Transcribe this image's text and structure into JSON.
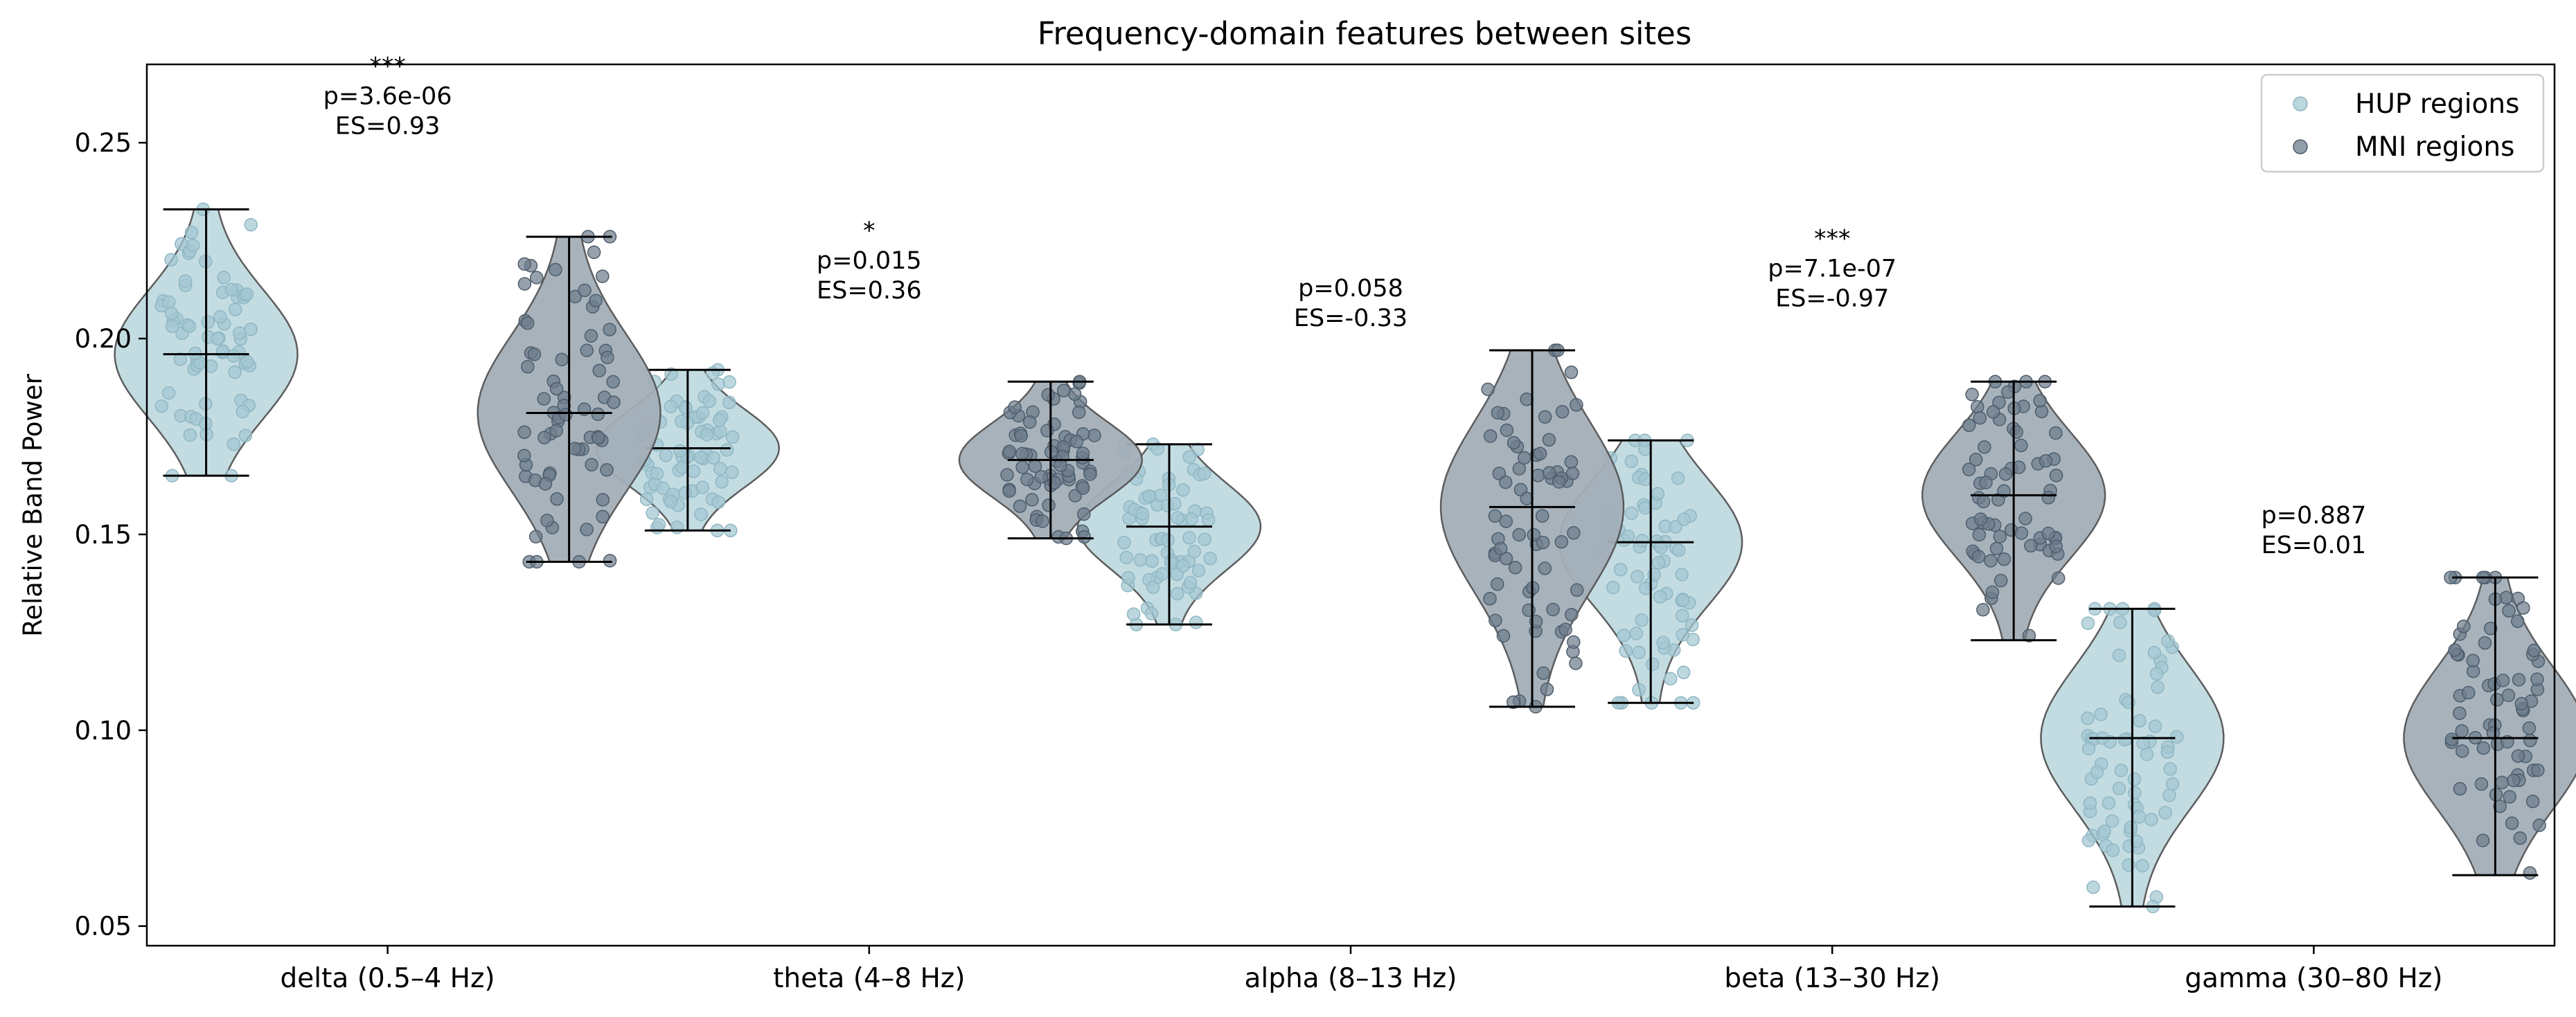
{
  "chart_data": {
    "type": "violin",
    "title": "Frequency-domain features between sites",
    "ylabel": "Relative Band Power",
    "xlabel": "",
    "ylim": [
      0.045,
      0.27
    ],
    "yticks": [
      0.05,
      0.1,
      0.15,
      0.2,
      0.25
    ],
    "ytick_labels": [
      "0.05",
      "0.10",
      "0.15",
      "0.20",
      "0.25"
    ],
    "legend": {
      "placement": "top-right",
      "entries": [
        {
          "label": "HUP regions",
          "color": "#a3c8d3"
        },
        {
          "label": "MNI regions",
          "color": "#6e7d8c"
        }
      ]
    },
    "grid": false,
    "categories": [
      "delta (0.5–4 Hz)",
      "theta (4–8 Hz)",
      "alpha (8–13 Hz)",
      "beta (13–30 Hz)",
      "gamma (30–80 Hz)"
    ],
    "series": [
      {
        "name": "HUP regions",
        "color": "#a3c8d3",
        "groups": [
          {
            "min": 0.165,
            "max": 0.233,
            "median": 0.196
          },
          {
            "min": 0.151,
            "max": 0.192,
            "median": 0.172
          },
          {
            "min": 0.127,
            "max": 0.173,
            "median": 0.152
          },
          {
            "min": 0.107,
            "max": 0.174,
            "median": 0.148
          },
          {
            "min": 0.055,
            "max": 0.131,
            "median": 0.098
          }
        ]
      },
      {
        "name": "MNI regions",
        "color": "#6e7d8c",
        "groups": [
          {
            "min": 0.143,
            "max": 0.226,
            "median": 0.181
          },
          {
            "min": 0.149,
            "max": 0.189,
            "median": 0.169
          },
          {
            "min": 0.106,
            "max": 0.197,
            "median": 0.157
          },
          {
            "min": 0.123,
            "max": 0.189,
            "median": 0.16
          },
          {
            "min": 0.063,
            "max": 0.139,
            "median": 0.098
          }
        ]
      }
    ],
    "annotations": [
      {
        "stars": "***",
        "p": "p=3.6e-06",
        "es": "ES=0.93",
        "y": 0.254
      },
      {
        "stars": "*",
        "p": "p=0.015",
        "es": "ES=0.36",
        "y": 0.212
      },
      {
        "stars": "",
        "p": "p=0.058",
        "es": "ES=-0.33",
        "y": 0.205
      },
      {
        "stars": "***",
        "p": "p=7.1e-07",
        "es": "ES=-0.97",
        "y": 0.21
      },
      {
        "stars": "",
        "p": "p=0.887",
        "es": "ES=0.01",
        "y": 0.147
      }
    ]
  }
}
